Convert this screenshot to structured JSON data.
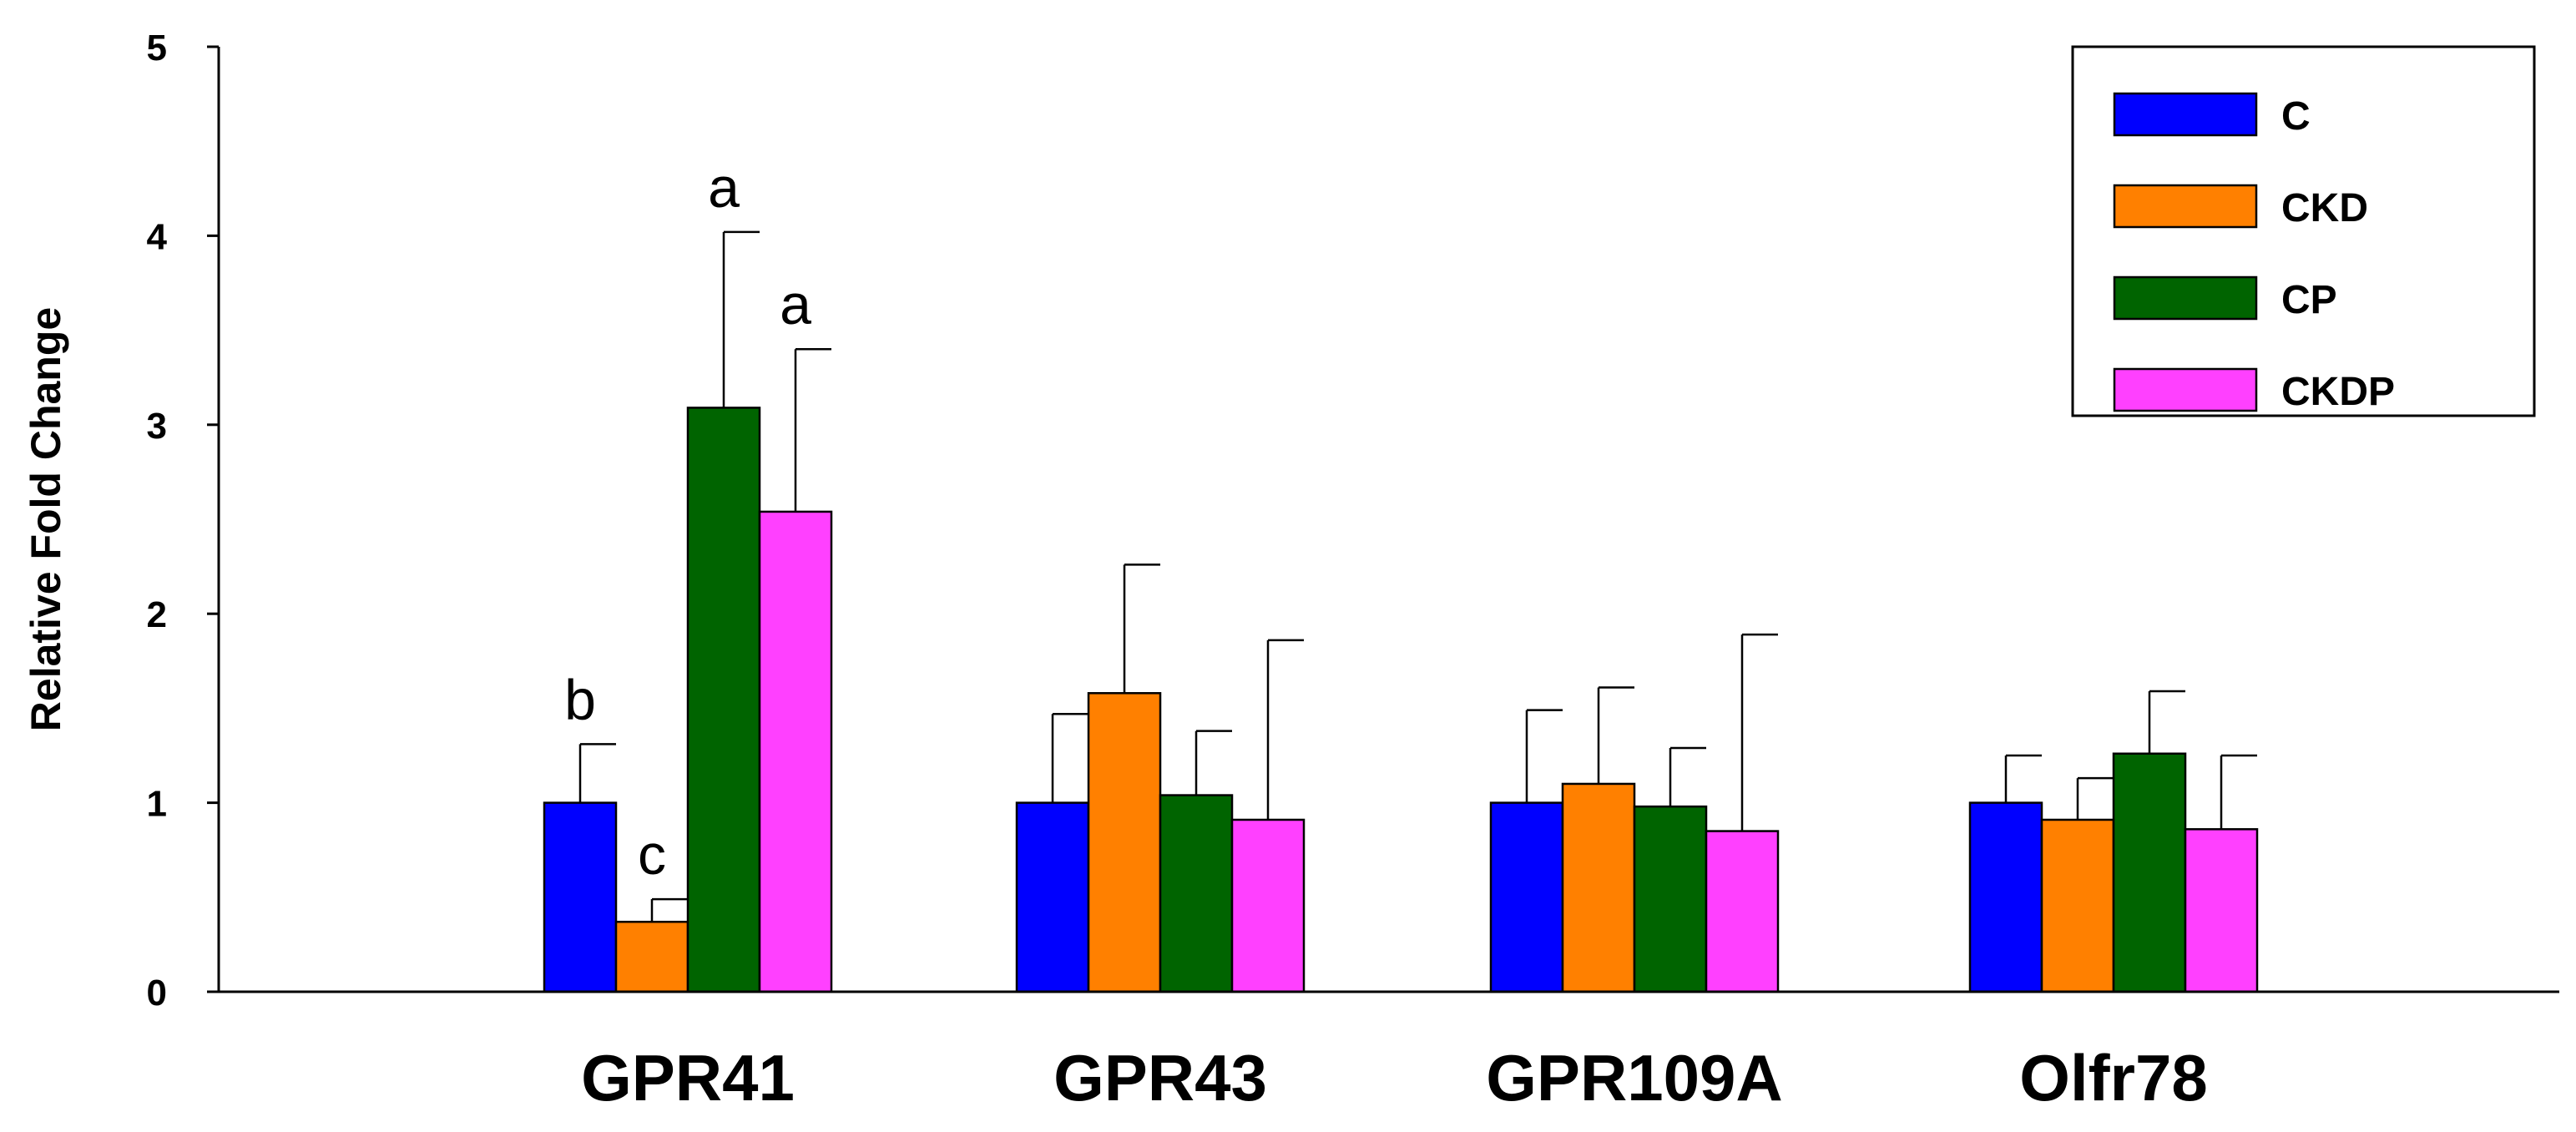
{
  "chart_data": {
    "type": "bar",
    "title": "",
    "xlabel": "",
    "ylabel": "Relative Fold Change",
    "ylim": [
      0,
      5
    ],
    "yticks": [
      "0",
      "1",
      "2",
      "3",
      "4",
      "5"
    ],
    "grid": false,
    "legend_position": "top-right",
    "categories": [
      "GPR41",
      "GPR43",
      "GPR109A",
      "Olfr78"
    ],
    "series": [
      {
        "name": "C",
        "color": "#0000FF",
        "values": [
          1.0,
          1.0,
          1.0,
          1.0
        ],
        "errors": [
          0.31,
          0.47,
          0.49,
          0.25
        ]
      },
      {
        "name": "CKD",
        "color": "#FF8000",
        "values": [
          0.37,
          1.58,
          1.1,
          0.91
        ],
        "errors": [
          0.12,
          0.68,
          0.51,
          0.22
        ]
      },
      {
        "name": "CP",
        "color": "#006400",
        "values": [
          3.09,
          1.04,
          0.98,
          1.26
        ],
        "errors": [
          0.93,
          0.34,
          0.31,
          0.33
        ]
      },
      {
        "name": "CKDP",
        "color": "#FF40FF",
        "values": [
          2.54,
          0.91,
          0.85,
          0.86
        ],
        "errors": [
          0.86,
          0.95,
          1.04,
          0.39
        ]
      }
    ],
    "annotations": [
      {
        "category": "GPR41",
        "series": "C",
        "text": "b"
      },
      {
        "category": "GPR41",
        "series": "CKD",
        "text": "c"
      },
      {
        "category": "GPR41",
        "series": "CP",
        "text": "a"
      },
      {
        "category": "GPR41",
        "series": "CKDP",
        "text": "a"
      }
    ]
  }
}
